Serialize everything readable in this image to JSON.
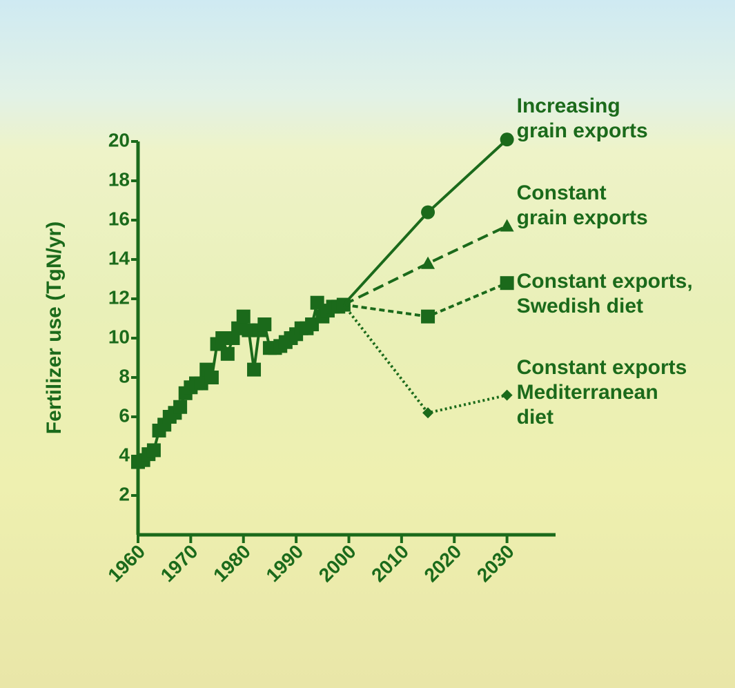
{
  "chart_data": {
    "type": "line",
    "y_label": "Fertilizer use (TgN/yr)",
    "color": "#1b6a1b",
    "xlim": [
      1960,
      2040
    ],
    "xticks": [
      1960,
      1970,
      1980,
      1990,
      2000,
      2010,
      2020,
      2030
    ],
    "ylim": [
      0,
      20
    ],
    "yticks": [
      2,
      4,
      6,
      8,
      10,
      12,
      14,
      16,
      18,
      20
    ],
    "historical": {
      "marker": "square",
      "x": [
        1960,
        1961,
        1962,
        1963,
        1964,
        1965,
        1966,
        1967,
        1968,
        1969,
        1970,
        1971,
        1972,
        1973,
        1974,
        1975,
        1976,
        1977,
        1978,
        1979,
        1980,
        1981,
        1982,
        1983,
        1984,
        1985,
        1986,
        1987,
        1988,
        1989,
        1990,
        1991,
        1992,
        1993,
        1994,
        1995,
        1996,
        1997,
        1998,
        1999
      ],
      "values": [
        3.7,
        3.8,
        4.1,
        4.3,
        5.3,
        5.6,
        6.0,
        6.2,
        6.5,
        7.2,
        7.5,
        7.7,
        7.7,
        8.4,
        8.0,
        9.7,
        10.0,
        9.2,
        10.0,
        10.5,
        11.1,
        10.4,
        8.4,
        10.4,
        10.7,
        9.5,
        9.5,
        9.6,
        9.8,
        10.0,
        10.2,
        10.5,
        10.5,
        10.7,
        11.8,
        11.1,
        11.4,
        11.6,
        11.6,
        11.7
      ]
    },
    "series": [
      {
        "name": "Increasing\ngrain exports",
        "marker": "circle",
        "dash": "solid",
        "x": [
          2015,
          2030
        ],
        "values": [
          16.4,
          20.1
        ]
      },
      {
        "name": "Constant\ngrain exports",
        "marker": "triangle",
        "dash": "dashed",
        "x": [
          2015,
          2030
        ],
        "values": [
          13.8,
          15.7
        ]
      },
      {
        "name": "Constant exports,\nSwedish diet",
        "marker": "square",
        "dash": "short-dashed",
        "x": [
          2015,
          2030
        ],
        "values": [
          11.1,
          12.8
        ]
      },
      {
        "name": "Constant exports\nMediterranean\ndiet",
        "marker": "diamond",
        "dash": "dotted",
        "x": [
          2015,
          2030
        ],
        "values": [
          6.2,
          7.1
        ]
      }
    ]
  }
}
